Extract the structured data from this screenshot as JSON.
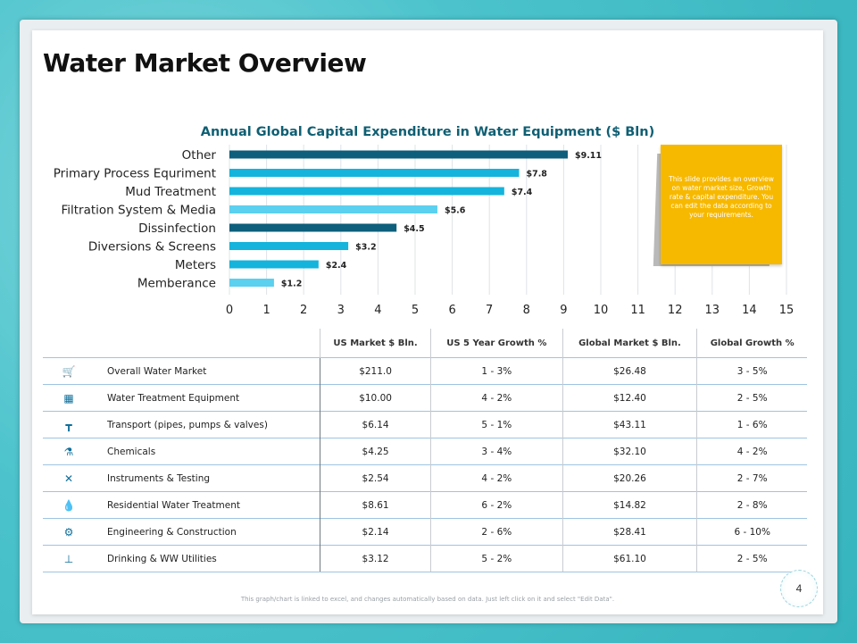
{
  "slide": {
    "title": "Water Market Overview",
    "note": "This slide provides an overview on water market size, Growth rate & capital expenditure. You can edit the data according to your requirements.",
    "footer": "This graph/chart is linked to excel, and changes automatically based on data. Just left click on it and select \"Edit Data\".",
    "page_number": "4"
  },
  "chart_data": {
    "type": "bar",
    "orientation": "horizontal",
    "title": "Annual Global Capital Expenditure in Water Equipment ($ Bln)",
    "categories": [
      "Other",
      "Primary Process Equriment",
      "Mud Treatment",
      "Filtration System & Media",
      "Dissinfection",
      "Diversions & Screens",
      "Meters",
      "Memberance"
    ],
    "values": [
      9.11,
      7.8,
      7.4,
      5.6,
      4.5,
      3.2,
      2.4,
      1.2
    ],
    "data_labels": [
      "$9.11",
      "$7.8",
      "$7.4",
      "$5.6",
      "$4.5",
      "$3.2",
      "$2.4",
      "$1.2"
    ],
    "bar_colors": [
      "#0d5f7c",
      "#14b4dc",
      "#14b4dc",
      "#5bd0ef",
      "#0d5f7c",
      "#14b4dc",
      "#14b4dc",
      "#5bd0ef"
    ],
    "xlim": [
      0,
      15
    ],
    "xticks": [
      0,
      1,
      2,
      3,
      4,
      5,
      6,
      7,
      8,
      9,
      10,
      11,
      12,
      13,
      14,
      15
    ],
    "grid": true,
    "title_color": "#0f5f73"
  },
  "table": {
    "headers": [
      "US Market $ Bln.",
      "US 5 Year Growth %",
      "Global Market $ Bln.",
      "Global Growth %"
    ],
    "rows": [
      {
        "icon": "cart-icon",
        "glyph": "🛒",
        "label": "Overall Water Market",
        "values": [
          "$211.0",
          "1 - 3%",
          "$26.48",
          "3 - 5%"
        ]
      },
      {
        "icon": "water-tank-icon",
        "glyph": "▦",
        "label": "Water Treatment Equipment",
        "values": [
          "$10.00",
          "4 - 2%",
          "$12.40",
          "2 - 5%"
        ]
      },
      {
        "icon": "pipe-icon",
        "glyph": "┳",
        "label": "Transport (pipes, pumps & valves)",
        "values": [
          "$6.14",
          "5 - 1%",
          "$43.11",
          "1 - 6%"
        ]
      },
      {
        "icon": "chemicals-icon",
        "glyph": "⚗",
        "label": "Chemicals",
        "values": [
          "$4.25",
          "3 - 4%",
          "$32.10",
          "4 - 2%"
        ]
      },
      {
        "icon": "tools-icon",
        "glyph": "✕",
        "label": "Instruments & Testing",
        "values": [
          "$2.54",
          "4 - 2%",
          "$20.26",
          "2 - 7%"
        ]
      },
      {
        "icon": "water-drop-icon",
        "glyph": "💧",
        "label": "Residential Water Treatment",
        "values": [
          "$8.61",
          "6 - 2%",
          "$14.82",
          "2 - 8%"
        ]
      },
      {
        "icon": "engineer-icon",
        "glyph": "⚙",
        "label": "Engineering & Construction",
        "values": [
          "$2.14",
          "2 - 6%",
          "$28.41",
          "6 - 10%"
        ]
      },
      {
        "icon": "faucet-icon",
        "glyph": "⊥",
        "label": "Drinking & WW Utilities",
        "values": [
          "$3.12",
          "5 - 2%",
          "$61.10",
          "2 - 5%"
        ]
      }
    ]
  }
}
